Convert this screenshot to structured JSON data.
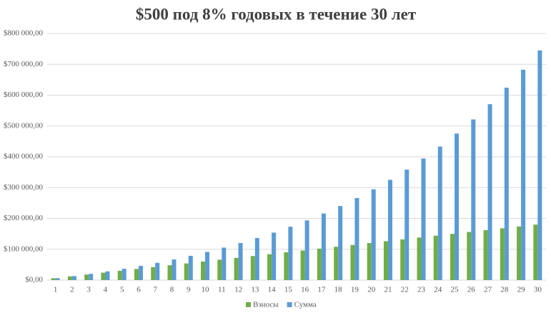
{
  "chart_data": {
    "type": "bar",
    "title": "$500 под 8% годовых в течение 30 лет",
    "categories": [
      "1",
      "2",
      "3",
      "4",
      "5",
      "6",
      "7",
      "8",
      "9",
      "10",
      "11",
      "12",
      "13",
      "14",
      "15",
      "16",
      "17",
      "18",
      "19",
      "20",
      "21",
      "22",
      "23",
      "24",
      "25",
      "26",
      "27",
      "28",
      "29",
      "30"
    ],
    "series": [
      {
        "name": "Взносы",
        "color": "#70ad47",
        "values": [
          6000,
          12000,
          18000,
          24000,
          30000,
          36000,
          42000,
          48000,
          54000,
          60000,
          66000,
          72000,
          78000,
          84000,
          90000,
          96000,
          102000,
          108000,
          114000,
          120000,
          126000,
          132000,
          138000,
          144000,
          150000,
          156000,
          162000,
          168000,
          174000,
          180000
        ]
      },
      {
        "name": "Сумма",
        "color": "#5b9bd5",
        "values": [
          6200,
          13000,
          20300,
          28200,
          36700,
          46000,
          56100,
          66900,
          78700,
          91500,
          105300,
          120300,
          136500,
          154000,
          173000,
          193600,
          215900,
          240100,
          266200,
          294500,
          325200,
          358400,
          394400,
          433300,
          475500,
          521200,
          570700,
          624300,
          682400,
          745200
        ]
      }
    ],
    "ylim": [
      0,
      800000
    ],
    "yticks": [
      {
        "value": 0,
        "label": "$0,00"
      },
      {
        "value": 100000,
        "label": "$100 000,00"
      },
      {
        "value": 200000,
        "label": "$200 000,00"
      },
      {
        "value": 300000,
        "label": "$300 000,00"
      },
      {
        "value": 400000,
        "label": "$400 000,00"
      },
      {
        "value": 500000,
        "label": "$500 000,00"
      },
      {
        "value": 600000,
        "label": "$600 000,00"
      },
      {
        "value": 700000,
        "label": "$700 000,00"
      },
      {
        "value": 800000,
        "label": "$800 000,00"
      }
    ],
    "grid": true,
    "legend": "bottom"
  }
}
